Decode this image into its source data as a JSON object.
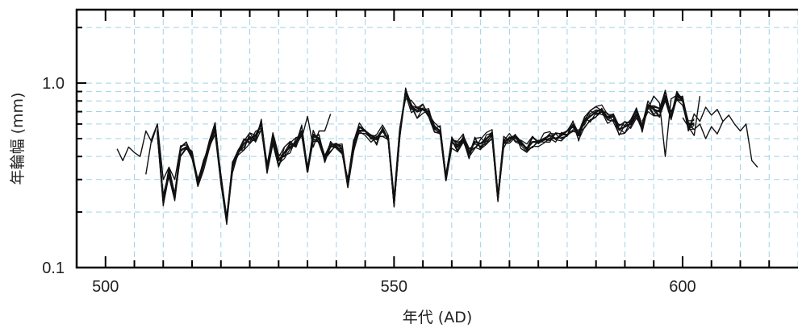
{
  "chart_data": {
    "type": "line",
    "title": "",
    "xlabel": "年代 (AD)",
    "ylabel": "年輪幅 (mm)",
    "xlim": [
      495,
      620
    ],
    "ylim": [
      0.1,
      2.5
    ],
    "yscale": "log",
    "grid": true,
    "legend": "none",
    "x_ticks": [
      500,
      550,
      600
    ],
    "x_tick_labels": [
      "500",
      "550",
      "600"
    ],
    "y_ticks": [
      0.1,
      1.0
    ],
    "y_tick_labels": [
      "0.1",
      "1.0"
    ],
    "colors": {
      "series": "#111111",
      "grid": "#9fd3e6",
      "axis": "#000000"
    },
    "mean": {
      "x": [
        509,
        510,
        511,
        512,
        513,
        514,
        515,
        516,
        517,
        518,
        519,
        520,
        521,
        522,
        523,
        524,
        525,
        526,
        527,
        528,
        529,
        530,
        531,
        532,
        533,
        534,
        535,
        536,
        537,
        538,
        539,
        540,
        541,
        542,
        543,
        544,
        545,
        546,
        547,
        548,
        549,
        550,
        551,
        552,
        553,
        554,
        555,
        556,
        557,
        558,
        559,
        560,
        561,
        562,
        563,
        564,
        565,
        566,
        567,
        568,
        569,
        570,
        571,
        572,
        573,
        574,
        575,
        576,
        577,
        578,
        579,
        580,
        581,
        582,
        583,
        584,
        585,
        586,
        587,
        588,
        589,
        590,
        591,
        592,
        593,
        594,
        595,
        596,
        597,
        598,
        599,
        600,
        601,
        602
      ],
      "y": [
        0.55,
        0.23,
        0.33,
        0.24,
        0.43,
        0.45,
        0.42,
        0.28,
        0.36,
        0.47,
        0.57,
        0.3,
        0.18,
        0.35,
        0.42,
        0.47,
        0.5,
        0.52,
        0.6,
        0.35,
        0.5,
        0.38,
        0.42,
        0.45,
        0.48,
        0.55,
        0.33,
        0.52,
        0.5,
        0.4,
        0.46,
        0.47,
        0.44,
        0.28,
        0.46,
        0.58,
        0.55,
        0.52,
        0.5,
        0.55,
        0.5,
        0.23,
        0.55,
        0.88,
        0.75,
        0.7,
        0.72,
        0.7,
        0.58,
        0.55,
        0.3,
        0.48,
        0.45,
        0.5,
        0.42,
        0.48,
        0.47,
        0.5,
        0.53,
        0.24,
        0.48,
        0.5,
        0.52,
        0.48,
        0.44,
        0.48,
        0.48,
        0.5,
        0.52,
        0.5,
        0.52,
        0.55,
        0.58,
        0.52,
        0.62,
        0.66,
        0.7,
        0.72,
        0.65,
        0.66,
        0.56,
        0.58,
        0.6,
        0.68,
        0.58,
        0.76,
        0.72,
        0.7,
        0.85,
        0.65,
        0.88,
        0.82,
        0.6,
        0.6
      ]
    },
    "series": [
      {
        "x": [
          502,
          503,
          504,
          505,
          506,
          507,
          508,
          509,
          510,
          511,
          512,
          513,
          514,
          515
        ],
        "y": [
          0.44,
          0.38,
          0.45,
          0.42,
          0.4,
          0.55,
          0.48,
          0.6,
          0.3,
          0.35,
          0.3,
          0.45,
          0.48,
          0.4
        ]
      },
      {
        "x": [
          507,
          508,
          509
        ],
        "y": [
          0.32,
          0.5,
          0.6
        ]
      },
      {
        "x": [
          534,
          535,
          536,
          537,
          538,
          539
        ],
        "y": [
          0.5,
          0.66,
          0.45,
          0.55,
          0.55,
          0.68
        ]
      },
      {
        "x": [
          593,
          594,
          595,
          596,
          597,
          598,
          599,
          600,
          601,
          602,
          603,
          604,
          605,
          606,
          607,
          608,
          609,
          610,
          611,
          612,
          613
        ],
        "y": [
          0.62,
          0.72,
          0.85,
          0.78,
          0.4,
          0.82,
          0.86,
          0.8,
          0.55,
          0.68,
          0.62,
          0.74,
          0.67,
          0.72,
          0.62,
          0.67,
          0.6,
          0.55,
          0.6,
          0.38,
          0.35
        ]
      },
      {
        "x": [
          600,
          601,
          602,
          603
        ],
        "y": [
          0.65,
          0.58,
          0.52,
          0.85
        ]
      },
      {
        "x": [
          601,
          602,
          603,
          604,
          605,
          606,
          607
        ],
        "y": [
          0.6,
          0.56,
          0.6,
          0.5,
          0.58,
          0.53,
          0.62
        ]
      }
    ]
  }
}
